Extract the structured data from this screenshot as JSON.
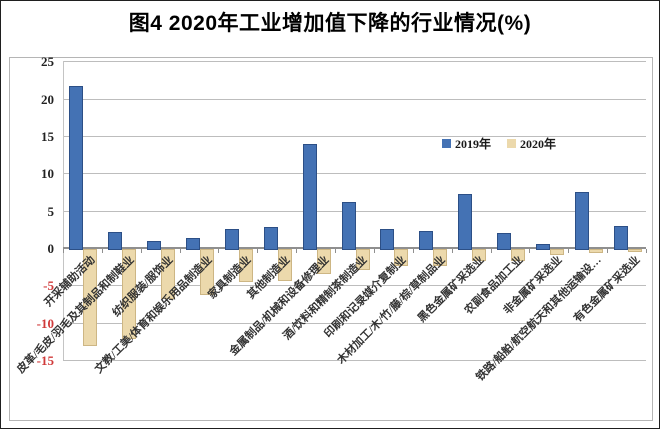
{
  "title": "图4 2020年工业增加值下降的行业情况(%)",
  "colors": {
    "series_2019": "#4472b4",
    "series_2019_border": "#2c4f86",
    "series_2020": "#ecd9ac",
    "series_2020_border": "#cdb684",
    "gridline": "#bdbdbd",
    "axis": "#8f8f8f",
    "y_axis": "#c4c4c4",
    "positive_tick_label": "#222222",
    "negative_tick_label": "#d03a3a",
    "category_label": "#333333"
  },
  "legend": {
    "items": [
      "2019年",
      "2020年"
    ]
  },
  "chart_data": {
    "type": "bar",
    "title": "图4 2020年工业增加值下降的行业情况(%)",
    "categories": [
      "开采辅助活动",
      "皮革/毛皮/羽毛及其制品和制鞋业",
      "纺织服装/服饰业",
      "文教/工美/体育和娱乐用品制造业",
      "家具制造业",
      "其他制造业",
      "金属制品/机械和设备修理业",
      "酒/饮料和精制茶制造业",
      "印刷和记录媒介复制业",
      "木材加工/木/竹/藤/棕/草制品业",
      "黑色金属矿采选业",
      "农副食品加工业",
      "非金属矿采选业",
      "铁路/船舶/航空航天和其他运输设…",
      "有色金属矿采选业"
    ],
    "series": [
      {
        "name": "2019年",
        "values": [
          21.7,
          2.1,
          0.9,
          1.3,
          2.6,
          2.8,
          13.9,
          6.2,
          2.6,
          2.3,
          7.2,
          2.0,
          0.5,
          7.5,
          3.0
        ]
      },
      {
        "name": "2020年",
        "values": [
          -12.7,
          -11.8,
          -6.4,
          -5.9,
          -4.2,
          -4.0,
          -3.1,
          -2.6,
          -2.0,
          -2.0,
          -1.4,
          -1.3,
          -0.5,
          -0.3,
          -0.2
        ]
      }
    ],
    "ylabel": "",
    "xlabel": "",
    "ylim": [
      -15,
      25
    ],
    "yticks": [
      25,
      20,
      15,
      10,
      5,
      0,
      -5,
      -10,
      -15
    ],
    "grid": true,
    "legend_position": "inside-top-right"
  }
}
